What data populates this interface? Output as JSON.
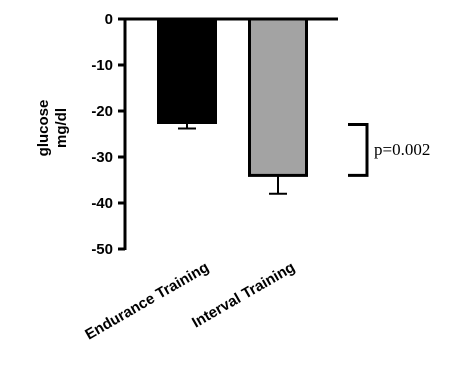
{
  "chart_data": {
    "type": "bar",
    "categories": [
      "Endurance Training",
      "Interval Training"
    ],
    "values": [
      -22.5,
      -34
    ],
    "errors": [
      1.3,
      4.0
    ],
    "ylabel_lines": [
      "glucose",
      "mg/dl"
    ],
    "ylim": [
      -50,
      0
    ],
    "yticks": [
      0,
      -10,
      -20,
      -30,
      -40,
      -50
    ],
    "bar_colors": [
      "#000000",
      "#a3a3a3"
    ],
    "significance": {
      "text": "p=0.002",
      "from": -22.5,
      "to": -34
    },
    "grid": false
  }
}
